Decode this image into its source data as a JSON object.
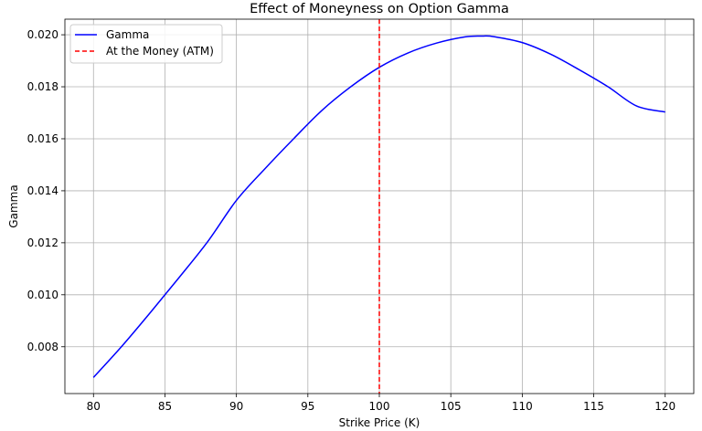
{
  "chart_data": {
    "type": "line",
    "title": "Effect of Moneyness on Option Gamma",
    "xlabel": "Strike Price (K)",
    "ylabel": "Gamma",
    "xlim": [
      78,
      122
    ],
    "ylim": [
      0.0062,
      0.0206
    ],
    "xticks": [
      80,
      85,
      90,
      95,
      100,
      105,
      110,
      115,
      120
    ],
    "yticks": [
      0.008,
      0.01,
      0.012,
      0.014,
      0.016,
      0.018,
      0.02
    ],
    "grid": true,
    "legend_position": "top-left",
    "series": [
      {
        "name": "Gamma",
        "color": "#0000ff",
        "style": "solid",
        "x": [
          80,
          82,
          84,
          86,
          88,
          90,
          92,
          94,
          96,
          98,
          100,
          102,
          104,
          106,
          107.2,
          108,
          110,
          112,
          114,
          116,
          118,
          120
        ],
        "y": [
          0.00682,
          0.00803,
          0.00933,
          0.01067,
          0.01205,
          0.01363,
          0.01485,
          0.016,
          0.0171,
          0.018,
          0.01875,
          0.0193,
          0.01968,
          0.01992,
          0.01995,
          0.01993,
          0.0197,
          0.01925,
          0.01865,
          0.018,
          0.01726,
          0.01703
        ]
      },
      {
        "name": "At the Money (ATM)",
        "color": "#ff0000",
        "style": "dashed",
        "type": "vline",
        "x_value": 100
      }
    ]
  }
}
